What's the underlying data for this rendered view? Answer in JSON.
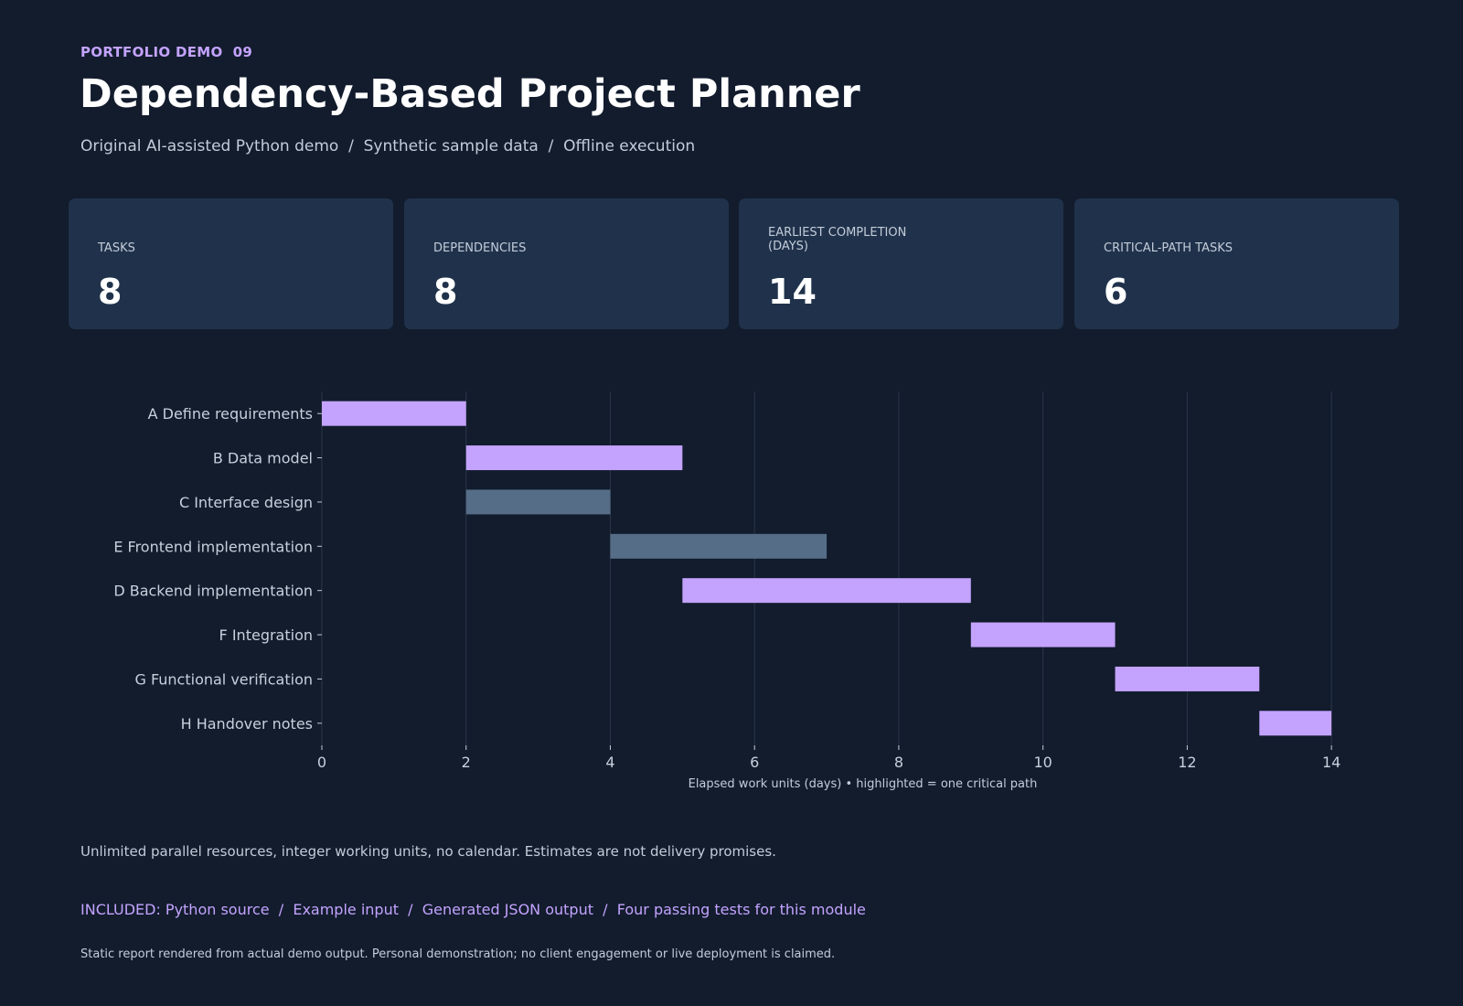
{
  "header": {
    "eyebrow": "PORTFOLIO DEMO  09",
    "title": "Dependency-Based Project Planner",
    "subtitle": "Original AI-assisted Python demo  /  Synthetic sample data  /  Offline execution"
  },
  "cards": [
    {
      "label": "TASKS",
      "value": "8"
    },
    {
      "label": "DEPENDENCIES",
      "value": "8"
    },
    {
      "label": "EARLIEST COMPLETION\n(DAYS)",
      "value": "14"
    },
    {
      "label": "CRITICAL-PATH TASKS",
      "value": "6"
    }
  ],
  "chart_data": {
    "type": "bar",
    "orientation": "horizontal-gantt",
    "xlabel": "Elapsed work units (days) • highlighted = one critical path",
    "xlim": [
      0,
      15
    ],
    "xticks": [
      0,
      2,
      4,
      6,
      8,
      10,
      12,
      14
    ],
    "grid": true,
    "colors": {
      "critical": "#c4a3ff",
      "normal": "#566d87"
    },
    "tasks": [
      {
        "label": "A  Define requirements",
        "start": 0,
        "end": 2,
        "critical": true
      },
      {
        "label": "B  Data model",
        "start": 2,
        "end": 5,
        "critical": true
      },
      {
        "label": "C  Interface design",
        "start": 2,
        "end": 4,
        "critical": false
      },
      {
        "label": "E  Frontend implementation",
        "start": 4,
        "end": 7,
        "critical": false
      },
      {
        "label": "D  Backend implementation",
        "start": 5,
        "end": 9,
        "critical": true
      },
      {
        "label": "F  Integration",
        "start": 9,
        "end": 11,
        "critical": true
      },
      {
        "label": "G  Functional verification",
        "start": 11,
        "end": 13,
        "critical": true
      },
      {
        "label": "H  Handover notes",
        "start": 13,
        "end": 14,
        "critical": true
      }
    ]
  },
  "footer": {
    "note": "Unlimited parallel resources, integer working units, no calendar. Estimates are not delivery promises.",
    "included": "INCLUDED: Python source  /  Example input  /  Generated JSON output  /  Four passing tests for this module",
    "disclaimer": "Static report rendered from actual demo output. Personal demonstration; no client engagement or live deployment is claimed."
  }
}
